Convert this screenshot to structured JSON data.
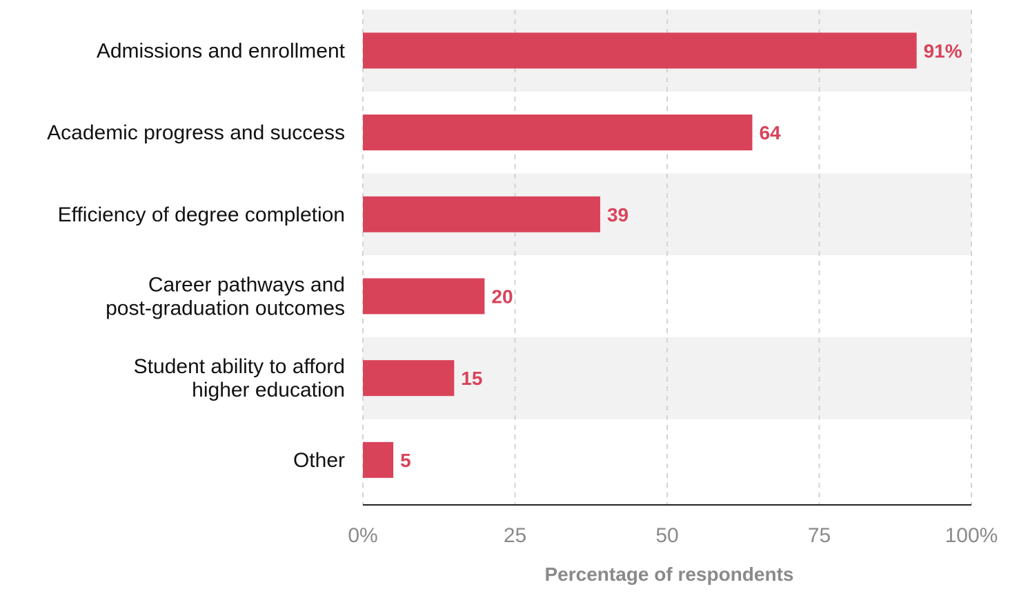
{
  "chart_data": {
    "type": "bar",
    "orientation": "horizontal",
    "categories": [
      [
        "Admissions and enrollment"
      ],
      [
        "Academic progress and success"
      ],
      [
        "Efficiency of degree completion"
      ],
      [
        "Career pathways and",
        "post-graduation outcomes"
      ],
      [
        "Student ability to afford",
        "higher education"
      ],
      [
        "Other"
      ]
    ],
    "values": [
      91,
      64,
      39,
      20,
      15,
      5
    ],
    "value_labels": [
      "91%",
      "64",
      "39",
      "20",
      "15",
      "5"
    ],
    "xlim": [
      0,
      100
    ],
    "x_ticks": [
      0,
      25,
      50,
      75,
      100
    ],
    "x_tick_labels": [
      "0%",
      "25",
      "50",
      "75",
      "100%"
    ],
    "xlabel": "Percentage of respondents",
    "grid": true,
    "colors": {
      "bar": "#d9435a",
      "value_label": "#d9435a",
      "band": "#f2f2f2",
      "grid": "#d3d3d3",
      "axis": "#222222"
    }
  }
}
